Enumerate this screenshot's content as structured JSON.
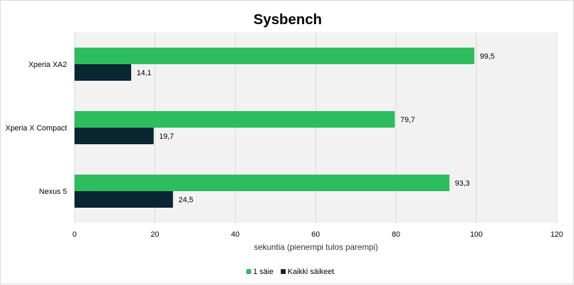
{
  "chart_data": {
    "type": "bar",
    "orientation": "horizontal",
    "title": "Sysbench",
    "xlabel": "sekuntia (pienempi tulos parempi)",
    "ylabel": "",
    "categories": [
      "Xperia XA2",
      "Xperia X Compact",
      "Nexus 5"
    ],
    "series": [
      {
        "name": "1 säie",
        "color": "#2dbd5e",
        "values": [
          99.5,
          79.7,
          93.3
        ],
        "labels": [
          "99,5",
          "79,7",
          "93,3"
        ]
      },
      {
        "name": "Kaikki säikeet",
        "color": "#0b2633",
        "values": [
          14.1,
          19.7,
          24.5
        ],
        "labels": [
          "14,1",
          "19,7",
          "24,5"
        ]
      }
    ],
    "xlim": [
      0,
      120
    ],
    "xticks": [
      0,
      20,
      40,
      60,
      80,
      100,
      120
    ],
    "grid": true,
    "legend_position": "bottom",
    "plot_background": "#f2f2f2",
    "grid_color": "#d9d9d9"
  }
}
